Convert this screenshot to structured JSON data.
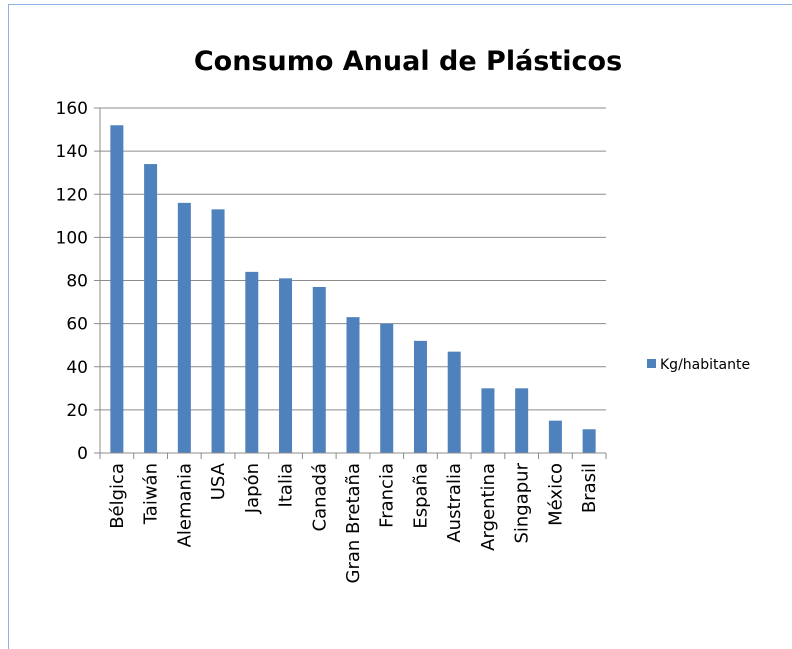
{
  "chart_data": {
    "type": "bar",
    "title": "Consumo Anual de Plásticos",
    "categories": [
      "Bélgica",
      "Taiwán",
      "Alemania",
      "USA",
      "Japón",
      "Italia",
      "Canadá",
      "Gran Bretaña",
      "Francia",
      "España",
      "Australia",
      "Argentina",
      "Singapur",
      "México",
      "Brasil"
    ],
    "series": [
      {
        "name": "Kg/habitante",
        "values": [
          152,
          134,
          116,
          113,
          84,
          81,
          77,
          63,
          60,
          52,
          47,
          30,
          30,
          15,
          11
        ],
        "color": "#4f81bd"
      }
    ],
    "ylim": [
      0,
      160
    ],
    "yticks": [
      0,
      20,
      40,
      60,
      80,
      100,
      120,
      140,
      160
    ],
    "ytick_labels": [
      "0",
      "20",
      "40",
      "60",
      "80",
      "100",
      "120",
      "140",
      "160"
    ],
    "grid": true,
    "legend": "right"
  }
}
